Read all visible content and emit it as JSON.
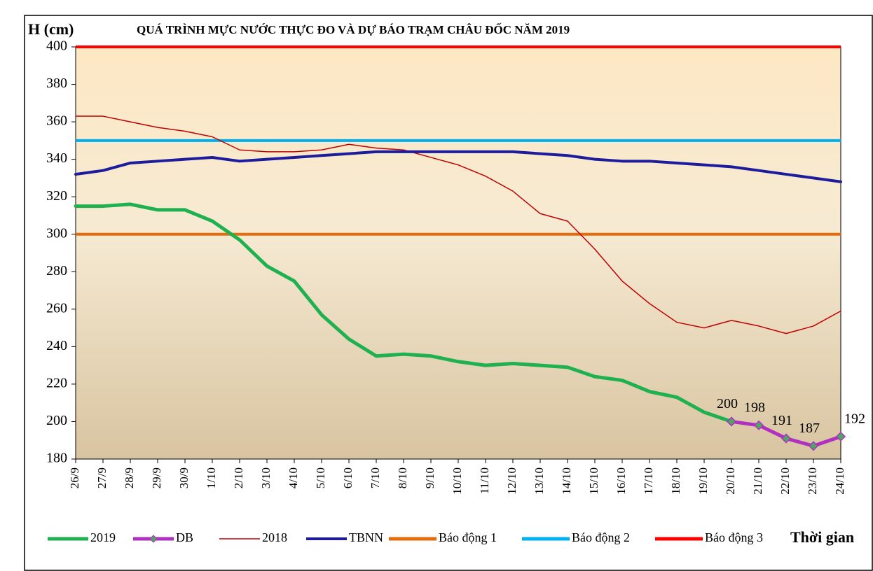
{
  "chart_data": {
    "type": "line",
    "title": "QUÁ TRÌNH MỰC NƯỚC THỰC ĐO VÀ DỰ BÁO TRẠM CHÂU ĐỐC NĂM  2019",
    "y_label": "H (cm)",
    "x_label": "Thời gian",
    "categories": [
      "26/9",
      "27/9",
      "28/9",
      "29/9",
      "30/9",
      "1/10",
      "2/10",
      "3/10",
      "4/10",
      "5/10",
      "6/10",
      "7/10",
      "8/10",
      "9/10",
      "10/10",
      "11/10",
      "12/10",
      "13/10",
      "14/10",
      "15/10",
      "16/10",
      "17/10",
      "18/10",
      "19/10",
      "20/10",
      "21/10",
      "22/10",
      "23/10",
      "24/10"
    ],
    "series": [
      {
        "name": "2019",
        "color": "#1fb050",
        "width": 5,
        "values": [
          315,
          315,
          316,
          313,
          313,
          307,
          297,
          283,
          275,
          257,
          244,
          235,
          236,
          235,
          232,
          230,
          231,
          230,
          229,
          224,
          222,
          216,
          213,
          205,
          200,
          null,
          null,
          null,
          null
        ]
      },
      {
        "name": "DB",
        "color": "#b030c0",
        "width": 5,
        "markers": true,
        "data_labels": true,
        "values": [
          null,
          null,
          null,
          null,
          null,
          null,
          null,
          null,
          null,
          null,
          null,
          null,
          null,
          null,
          null,
          null,
          null,
          null,
          null,
          null,
          null,
          null,
          null,
          null,
          200,
          198,
          191,
          187,
          192
        ]
      },
      {
        "name": "2018",
        "color": "#c00000",
        "width": 1.5,
        "values": [
          363,
          363,
          360,
          357,
          355,
          352,
          345,
          344,
          344,
          345,
          348,
          346,
          345,
          341,
          337,
          331,
          323,
          311,
          307,
          292,
          275,
          263,
          253,
          250,
          254,
          251,
          247,
          251,
          259
        ]
      },
      {
        "name": "TBNN",
        "color": "#1c1c9c",
        "width": 4,
        "values": [
          332,
          334,
          338,
          339,
          340,
          341,
          339,
          340,
          341,
          342,
          343,
          344,
          344,
          344,
          344,
          344,
          344,
          343,
          342,
          340,
          339,
          339,
          338,
          337,
          336,
          334,
          332,
          330,
          328
        ]
      }
    ],
    "reference_lines": [
      {
        "name": "Báo động 1",
        "color": "#e46c0a",
        "value": 300
      },
      {
        "name": "Báo động 2",
        "color": "#00b0f0",
        "value": 350
      },
      {
        "name": "Báo động 3",
        "color": "#ff0000",
        "value": 400
      }
    ],
    "ylim": [
      180,
      400
    ],
    "yticks": [
      180,
      200,
      220,
      240,
      260,
      280,
      300,
      320,
      340,
      360,
      380,
      400
    ]
  }
}
